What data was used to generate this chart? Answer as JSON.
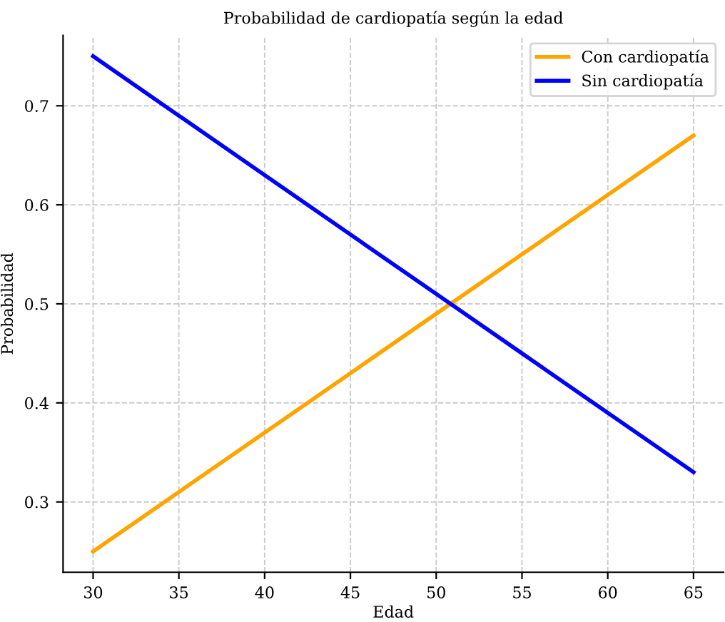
{
  "chart_data": {
    "type": "line",
    "title": "Probabilidad de cardiopatía según la edad",
    "xlabel": "Edad",
    "ylabel": "Probabilidad",
    "x": [
      30,
      35,
      40,
      45,
      50,
      55,
      60,
      65
    ],
    "series": [
      {
        "name": "Con cardiopatía",
        "color": "#ffa500",
        "values": [
          0.25,
          0.31,
          0.37,
          0.43,
          0.49,
          0.55,
          0.61,
          0.67
        ]
      },
      {
        "name": "Sin cardiopatía",
        "color": "#0000ff",
        "values": [
          0.75,
          0.69,
          0.63,
          0.57,
          0.51,
          0.45,
          0.39,
          0.33
        ]
      }
    ],
    "xlim": [
      28.25,
      66.75
    ],
    "xticks": [
      30,
      35,
      40,
      45,
      50,
      55,
      60,
      65
    ],
    "ylim": [
      0.229,
      0.771
    ],
    "yticks": [
      {
        "value": 0.3,
        "label": "0.3"
      },
      {
        "value": 0.4,
        "label": "0.4"
      },
      {
        "value": 0.5,
        "label": "0.5"
      },
      {
        "value": 0.6,
        "label": "0.6"
      },
      {
        "value": 0.7,
        "label": "0.7"
      }
    ],
    "grid": true,
    "legend": "top right",
    "line_style": "solid",
    "marker": "none"
  }
}
